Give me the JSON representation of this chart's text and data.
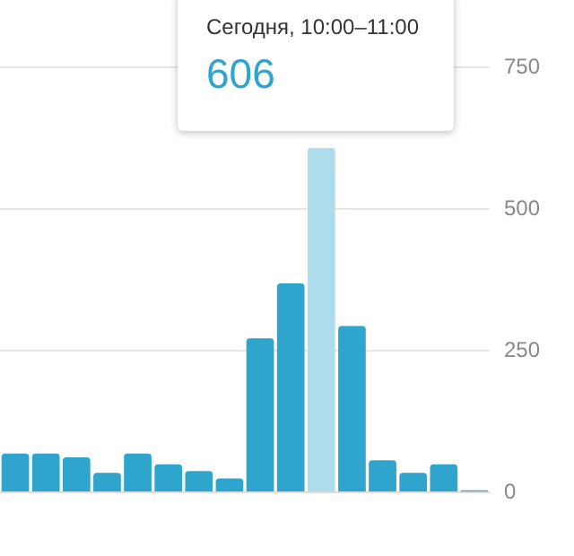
{
  "chart_data": {
    "type": "bar",
    "categories": [
      null,
      null,
      null,
      null,
      null,
      null,
      null,
      null,
      null,
      null,
      null,
      null,
      null,
      null,
      null,
      null
    ],
    "values": [
      67,
      67,
      60,
      33,
      67,
      48,
      36,
      23,
      270,
      367,
      606,
      292,
      55,
      33,
      48,
      2
    ],
    "colors": [
      "#2fa4cc",
      "#2fa4cc",
      "#2fa4cc",
      "#2fa4cc",
      "#2fa4cc",
      "#2fa4cc",
      "#2fa4cc",
      "#2fa4cc",
      "#2fa4cc",
      "#2fa4cc",
      "#addcea",
      "#2fa4cc",
      "#2fa4cc",
      "#2fa4cc",
      "#2fa4cc",
      "#2fa4cc"
    ],
    "annotations": [
      "Сегодня, 10:00–11:00",
      "606"
    ],
    "ylim": [
      0,
      750
    ],
    "yticks": [
      0,
      250,
      500,
      750
    ],
    "grid": "y"
  }
}
